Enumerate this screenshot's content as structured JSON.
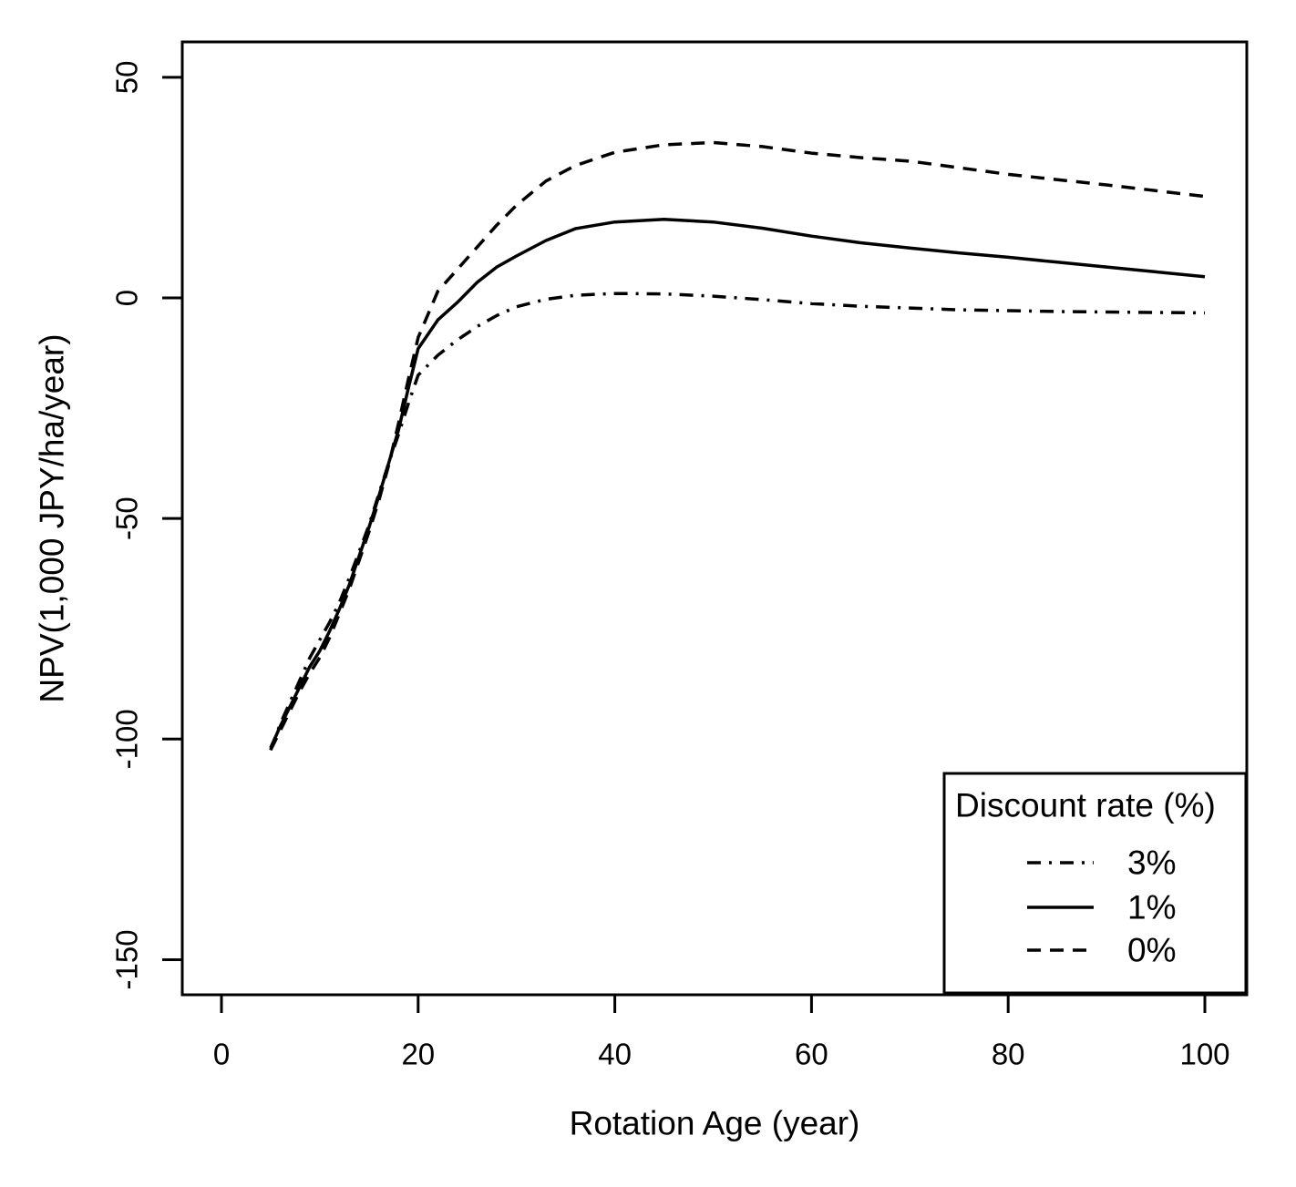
{
  "chart_data": {
    "type": "line",
    "title": "",
    "xlabel": "Rotation Age (year)",
    "ylabel": "NPV(1,000 JPY/ha/year)",
    "xlim": [
      -4,
      104
    ],
    "ylim": [
      -158,
      58
    ],
    "xticks": [
      0,
      20,
      40,
      60,
      80,
      100
    ],
    "yticks": [
      50,
      0,
      -50,
      -100,
      -150
    ],
    "grid": false,
    "axis_color": "#000000",
    "background_color": "#ffffff",
    "legend": {
      "title": "Discount rate (%)",
      "position": "bottom-right"
    },
    "x": [
      5,
      6,
      7,
      8,
      9,
      10,
      11,
      12,
      13,
      14,
      15,
      16,
      17,
      18,
      19,
      20,
      22,
      24,
      26,
      28,
      30,
      33,
      36,
      40,
      45,
      50,
      55,
      60,
      65,
      70,
      75,
      80,
      85,
      90,
      95,
      100
    ],
    "series": [
      {
        "id": "discount-3",
        "label": "3%",
        "line_style": "dashdot",
        "color": "#000000",
        "values": [
          -102.5,
          -96.5,
          -91.5,
          -86.5,
          -81.5,
          -77.5,
          -73.5,
          -69,
          -63.5,
          -57.5,
          -51.5,
          -44.5,
          -37.5,
          -31,
          -24,
          -17.5,
          -13,
          -9.5,
          -6.5,
          -4,
          -2,
          -0.3,
          0.6,
          1.0,
          0.9,
          0.4,
          -0.4,
          -1.3,
          -1.9,
          -2.3,
          -2.7,
          -2.9,
          -3.1,
          -3.2,
          -3.3,
          -3.4
        ]
      },
      {
        "id": "discount-1",
        "label": "1%",
        "line_style": "solid",
        "color": "#000000",
        "values": [
          -102,
          -97,
          -92.5,
          -88,
          -83.5,
          -80,
          -75.5,
          -70.5,
          -65,
          -58.5,
          -52,
          -45,
          -37.5,
          -30,
          -20.5,
          -11.5,
          -5,
          -1,
          3.5,
          7,
          9.5,
          13,
          15.7,
          17.2,
          17.8,
          17.2,
          15.8,
          14,
          12.5,
          11.3,
          10.2,
          9.2,
          8.1,
          7,
          5.9,
          4.8
        ]
      },
      {
        "id": "discount-0",
        "label": "0%",
        "line_style": "dashed",
        "color": "#000000",
        "values": [
          -102.5,
          -98,
          -93.5,
          -89,
          -85,
          -81.5,
          -77,
          -71.5,
          -66,
          -59.5,
          -53,
          -46,
          -38,
          -28.5,
          -18.5,
          -9,
          1.5,
          6.5,
          11.5,
          16.5,
          21,
          26.5,
          30,
          33,
          34.7,
          35.2,
          34.3,
          32.8,
          31.8,
          31,
          29.5,
          28,
          26.8,
          25.6,
          24.3,
          23
        ]
      }
    ]
  }
}
